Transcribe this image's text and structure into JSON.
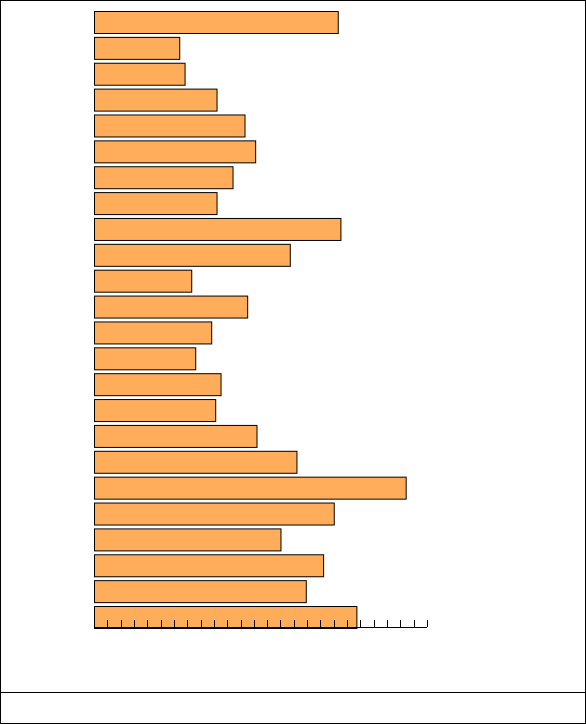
{
  "chart_data": {
    "type": "bar",
    "orientation": "horizontal",
    "color": "#ffad5b",
    "values": [
      18.3,
      6.4,
      6.8,
      9.2,
      11.3,
      12.1,
      10.4,
      9.2,
      18.5,
      14.7,
      7.3,
      11.5,
      8.8,
      7.6,
      9.5,
      9.1,
      12.2,
      15.2,
      23.4,
      18.0,
      14.0,
      17.2,
      15.9,
      19.7
    ],
    "xlim": [
      0,
      25
    ],
    "xticks": [
      0,
      1,
      2,
      3,
      4,
      5,
      6,
      7,
      8,
      9,
      10,
      11,
      12,
      13,
      14,
      15,
      16,
      17,
      18,
      19,
      20,
      21,
      22,
      23,
      24,
      25
    ]
  }
}
